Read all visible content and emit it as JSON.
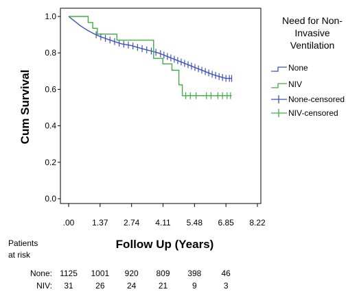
{
  "chart_data": {
    "type": "line",
    "subtype": "kaplan-meier",
    "title": "",
    "xlabel": "Follow Up (Years)",
    "ylabel": "Cum Survival",
    "xlim": [
      0,
      8.22
    ],
    "ylim": [
      0,
      1.0
    ],
    "x_ticks": [
      ".00",
      "1.37",
      "2.74",
      "4.11",
      "5.48",
      "6.85",
      "8.22"
    ],
    "y_ticks": [
      "0.0",
      "0.2",
      "0.4",
      "0.6",
      "0.8",
      "1.0"
    ],
    "grid": false,
    "legend": {
      "title": "Need for Non-Invasive Ventilation",
      "title_lines": [
        "Need for Non-",
        "Invasive",
        "Ventilation"
      ],
      "placement": "right",
      "entries": [
        "None",
        "NIV",
        "None-censored",
        "NIV-censored"
      ]
    },
    "series": [
      {
        "name": "None",
        "color": "#3b50c0",
        "x": [
          0,
          0.2,
          0.5,
          0.8,
          1.1,
          1.37,
          1.7,
          2.0,
          2.3,
          2.74,
          3.0,
          3.3,
          3.6,
          3.9,
          4.11,
          4.4,
          4.7,
          5.0,
          5.3,
          5.6,
          5.9,
          6.2,
          6.5,
          6.85,
          7.1
        ],
        "y": [
          1.0,
          0.98,
          0.95,
          0.925,
          0.905,
          0.89,
          0.875,
          0.862,
          0.85,
          0.84,
          0.83,
          0.82,
          0.81,
          0.8,
          0.79,
          0.775,
          0.76,
          0.745,
          0.73,
          0.715,
          0.7,
          0.685,
          0.672,
          0.66,
          0.66
        ],
        "censored_x": [
          1.2,
          1.4,
          1.6,
          1.8,
          2.0,
          2.2,
          2.4,
          2.6,
          2.8,
          3.0,
          3.2,
          3.4,
          3.6,
          3.8,
          4.0,
          4.15,
          4.3,
          4.45,
          4.6,
          4.75,
          4.9,
          5.05,
          5.2,
          5.35,
          5.5,
          5.65,
          5.8,
          5.95,
          6.1,
          6.25,
          6.4,
          6.55,
          6.7,
          6.85,
          7.0,
          7.1
        ]
      },
      {
        "name": "NIV",
        "color": "#3dae3d",
        "x": [
          0,
          0.85,
          0.85,
          1.05,
          1.05,
          1.25,
          1.25,
          2.1,
          2.1,
          3.7,
          3.7,
          4.1,
          4.1,
          4.5,
          4.5,
          4.8,
          4.8,
          4.95,
          4.95,
          7.1
        ],
        "y": [
          1.0,
          1.0,
          0.967,
          0.967,
          0.935,
          0.935,
          0.903,
          0.903,
          0.87,
          0.87,
          0.77,
          0.77,
          0.74,
          0.74,
          0.705,
          0.705,
          0.625,
          0.625,
          0.565,
          0.565
        ],
        "censored_x": [
          5.1,
          5.3,
          5.55,
          6.0,
          6.2,
          6.5,
          6.7,
          6.9,
          7.05
        ]
      }
    ],
    "at_risk": {
      "label_lines": [
        "Patients",
        "at risk"
      ],
      "rows": [
        {
          "name": "None:",
          "values": [
            "1125",
            "1001",
            "920",
            "809",
            "398",
            "46"
          ]
        },
        {
          "name": "NIV:",
          "values": [
            "31",
            "26",
            "24",
            "21",
            "9",
            "3"
          ]
        }
      ]
    }
  }
}
